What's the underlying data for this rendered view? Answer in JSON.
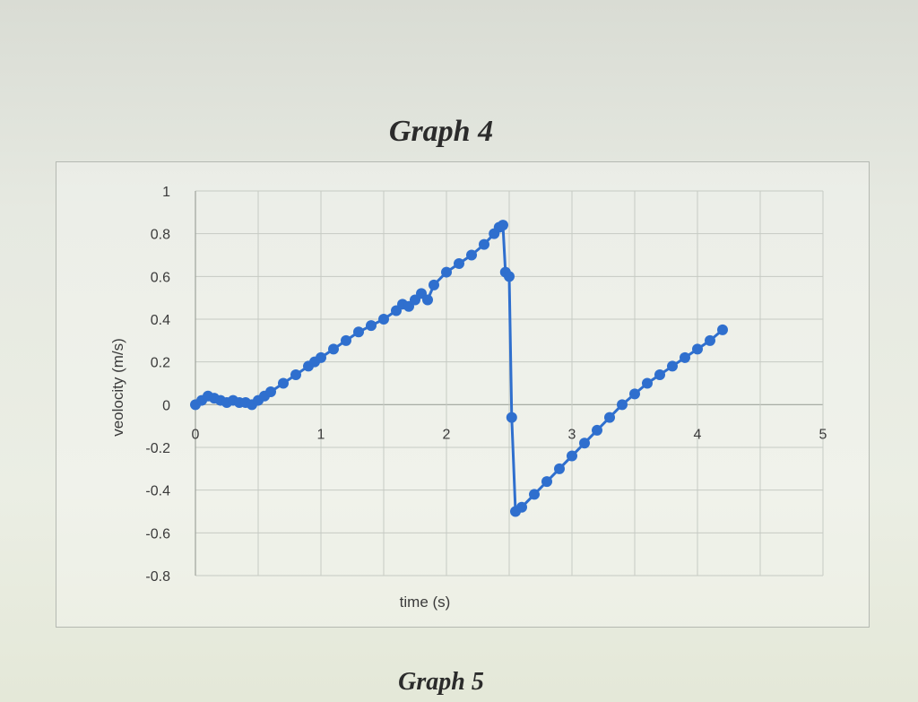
{
  "page": {
    "graph4_title": "Graph 4",
    "graph5_title": "Graph 5"
  },
  "colors": {
    "series": "#2f6fce",
    "grid": "#c6cac3"
  },
  "chart_data": {
    "type": "scatter",
    "title": "",
    "xlabel": "time (s)",
    "ylabel": "veolocity (m/s)",
    "xlim": [
      0,
      5
    ],
    "ylim": [
      -0.8,
      1
    ],
    "x_ticks": [
      "0",
      "1",
      "2",
      "3",
      "4",
      "5"
    ],
    "y_ticks": [
      "1",
      "0.8",
      "0.6",
      "0.4",
      "0.2",
      "0",
      "-0.2",
      "-0.4",
      "-0.6",
      "-0.8"
    ],
    "grid": true,
    "legend": "none",
    "series": [
      {
        "x": [
          0.0,
          0.05,
          0.1,
          0.15,
          0.2,
          0.25,
          0.3,
          0.35,
          0.4,
          0.45,
          0.5,
          0.55,
          0.6,
          0.7,
          0.8,
          0.9,
          0.95,
          1.0,
          1.1,
          1.2,
          1.3,
          1.4,
          1.5,
          1.6,
          1.65,
          1.7,
          1.75,
          1.8,
          1.85,
          1.9,
          2.0,
          2.1,
          2.2,
          2.3,
          2.38,
          2.42,
          2.45,
          2.47,
          2.5,
          2.52,
          2.55,
          2.6,
          2.7,
          2.8,
          2.9,
          3.0,
          3.1,
          3.2,
          3.3,
          3.4,
          3.5,
          3.6,
          3.7,
          3.8,
          3.9,
          4.0,
          4.1,
          4.2
        ],
        "y": [
          0.0,
          0.02,
          0.04,
          0.03,
          0.02,
          0.01,
          0.02,
          0.01,
          0.01,
          0.0,
          0.02,
          0.04,
          0.06,
          0.1,
          0.14,
          0.18,
          0.2,
          0.22,
          0.26,
          0.3,
          0.34,
          0.37,
          0.4,
          0.44,
          0.47,
          0.46,
          0.49,
          0.52,
          0.49,
          0.56,
          0.62,
          0.66,
          0.7,
          0.75,
          0.8,
          0.83,
          0.84,
          0.62,
          0.6,
          -0.06,
          -0.5,
          -0.48,
          -0.42,
          -0.36,
          -0.3,
          -0.24,
          -0.18,
          -0.12,
          -0.06,
          0.0,
          0.05,
          0.1,
          0.14,
          0.18,
          0.22,
          0.26,
          0.3,
          0.35
        ]
      }
    ]
  }
}
